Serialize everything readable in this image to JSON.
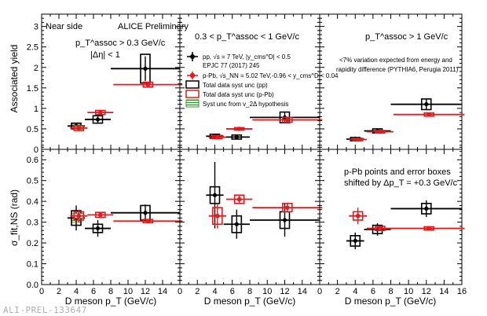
{
  "figure": {
    "watermark": "ALI-PREL-133647",
    "colors": {
      "pp": "#000000",
      "ppb": "#e41a1c",
      "v2": "#2ca02c"
    }
  },
  "chart_data": [
    {
      "type": "scatter",
      "panel": "top-left",
      "texts": [
        "Near side",
        "ALICE Preliminary",
        "p_T^assoc > 0.3 GeV/c",
        "|Δη| < 1"
      ],
      "ylabel": "Associated yield",
      "xlim": [
        0,
        16
      ],
      "ylim": [
        0,
        3.3
      ],
      "series": [
        {
          "name": "pp",
          "points": [
            {
              "x": 4,
              "y": 0.57,
              "xerr": 1.0,
              "ystat": 0.06,
              "ysys": 0.07
            },
            {
              "x": 6.5,
              "y": 0.73,
              "xerr": 1.5,
              "ystat": 0.1,
              "ysys": 0.09
            },
            {
              "x": 12,
              "y": 1.97,
              "xerr": 4.0,
              "ystat": 0.3,
              "ysys": 0.35
            }
          ]
        },
        {
          "name": "p-Pb",
          "points": [
            {
              "x": 4.3,
              "y": 0.52,
              "xerr": 1.0,
              "ystat": 0.04,
              "ysys": 0.06
            },
            {
              "x": 6.8,
              "y": 0.9,
              "xerr": 1.5,
              "ystat": 0.04,
              "ysys": 0.05
            },
            {
              "x": 12.3,
              "y": 1.58,
              "xerr": 4.0,
              "ystat": 0.05,
              "ysys": 0.06
            }
          ]
        }
      ]
    },
    {
      "type": "scatter",
      "panel": "top-middle",
      "texts": [
        "0.3 < p_T^assoc < 1 GeV/c"
      ],
      "legend": [
        "pp, √s = 7 TeV, |y_cms^D| < 0.5",
        "EPJC 77 (2017) 245",
        "p-Pb, √s_NN = 5.02 TeV,-0.96 < y_cms^D < 0.04",
        "Total data syst unc (pp)",
        "Total data syst unc (p-Pb)",
        "Syst unc from v_2Δ hypothesis"
      ],
      "xlim": [
        0,
        16
      ],
      "ylim": [
        0,
        3.3
      ],
      "series": [
        {
          "name": "pp",
          "points": [
            {
              "x": 4,
              "y": 0.32,
              "xerr": 1.0,
              "ystat": 0.05,
              "ysys": 0.05
            },
            {
              "x": 6.5,
              "y": 0.3,
              "xerr": 1.5,
              "ystat": 0.05,
              "ysys": 0.05
            },
            {
              "x": 12,
              "y": 0.78,
              "xerr": 4.0,
              "ystat": 0.13,
              "ysys": 0.13
            }
          ]
        },
        {
          "name": "p-Pb",
          "points": [
            {
              "x": 4.3,
              "y": 0.3,
              "xerr": 1.0,
              "ystat": 0.03,
              "ysys": 0.04
            },
            {
              "x": 6.8,
              "y": 0.5,
              "xerr": 1.5,
              "ystat": 0.03,
              "ysys": 0.03
            },
            {
              "x": 12.3,
              "y": 0.72,
              "xerr": 4.0,
              "ystat": 0.05,
              "ysys": 0.06
            }
          ]
        }
      ]
    },
    {
      "type": "scatter",
      "panel": "top-right",
      "texts": [
        "p_T^assoc > 1 GeV/c",
        "<7% variation expected from energy and",
        "rapidity difference (PYTHIA6, Perugia 2011)"
      ],
      "xlim": [
        0,
        16
      ],
      "ylim": [
        0,
        3.3
      ],
      "series": [
        {
          "name": "pp",
          "points": [
            {
              "x": 4,
              "y": 0.25,
              "xerr": 1.0,
              "ystat": 0.03,
              "ysys": 0.04
            },
            {
              "x": 6.5,
              "y": 0.45,
              "xerr": 1.5,
              "ystat": 0.04,
              "ysys": 0.05
            },
            {
              "x": 12,
              "y": 1.1,
              "xerr": 4.0,
              "ystat": 0.12,
              "ysys": 0.13
            }
          ]
        },
        {
          "name": "p-Pb",
          "points": [
            {
              "x": 4.3,
              "y": 0.24,
              "xerr": 1.0,
              "ystat": 0.03,
              "ysys": 0.03
            },
            {
              "x": 6.8,
              "y": 0.43,
              "xerr": 1.5,
              "ystat": 0.02,
              "ysys": 0.03
            },
            {
              "x": 12.3,
              "y": 0.85,
              "xerr": 4.0,
              "ystat": 0.04,
              "ysys": 0.04
            }
          ]
        }
      ]
    },
    {
      "type": "scatter",
      "panel": "bottom-left",
      "ylabel": "σ_fit,NS (rad)",
      "xlabel": "D meson p_T (GeV/c)",
      "xlim": [
        0,
        16
      ],
      "ylim": [
        0,
        0.65
      ],
      "series": [
        {
          "name": "pp",
          "points": [
            {
              "x": 4,
              "y": 0.32,
              "xerr": 1.0,
              "ystat": 0.06,
              "ysys": 0.035
            },
            {
              "x": 6.5,
              "y": 0.27,
              "xerr": 1.5,
              "ystat": 0.04,
              "ysys": 0.02
            },
            {
              "x": 12,
              "y": 0.345,
              "xerr": 4.0,
              "ystat": 0.04,
              "ysys": 0.035
            }
          ]
        },
        {
          "name": "p-Pb",
          "points": [
            {
              "x": 4.3,
              "y": 0.33,
              "xerr": 1.0,
              "ystat": 0.03,
              "ysys": 0.02
            },
            {
              "x": 6.8,
              "y": 0.335,
              "xerr": 1.5,
              "ystat": 0.01,
              "ysys": 0.012
            },
            {
              "x": 12.3,
              "y": 0.305,
              "xerr": 4.0,
              "ystat": 0.01,
              "ysys": 0.008
            }
          ]
        }
      ]
    },
    {
      "type": "scatter",
      "panel": "bottom-middle",
      "xlabel": "D meson p_T (GeV/c)",
      "xlim": [
        0,
        16
      ],
      "ylim": [
        0,
        0.65
      ],
      "series": [
        {
          "name": "pp",
          "points": [
            {
              "x": 4,
              "y": 0.43,
              "xerr": 1.0,
              "ystat": 0.16,
              "ysys": 0.04
            },
            {
              "x": 6.5,
              "y": 0.29,
              "xerr": 1.5,
              "ystat": 0.07,
              "ysys": 0.04
            },
            {
              "x": 12,
              "y": 0.31,
              "xerr": 4.0,
              "ystat": 0.08,
              "ysys": 0.04
            }
          ]
        },
        {
          "name": "p-Pb",
          "points": [
            {
              "x": 4.3,
              "y": 0.33,
              "xerr": 1.0,
              "ystat": 0.06,
              "ysys": 0.04
            },
            {
              "x": 6.8,
              "y": 0.41,
              "xerr": 1.5,
              "ystat": 0.02,
              "ysys": 0.02
            },
            {
              "x": 12.3,
              "y": 0.37,
              "xerr": 4.0,
              "ystat": 0.02,
              "ysys": 0.02
            }
          ]
        }
      ]
    },
    {
      "type": "scatter",
      "panel": "bottom-right",
      "texts": [
        "p-Pb points and error boxes",
        "shifted by Δp_T = +0.3 GeV/c"
      ],
      "xlabel": "D meson p_T (GeV/c)",
      "xlim": [
        0,
        16
      ],
      "ylim": [
        0,
        0.65
      ],
      "series": [
        {
          "name": "pp",
          "points": [
            {
              "x": 4,
              "y": 0.21,
              "xerr": 1.0,
              "ystat": 0.04,
              "ysys": 0.025
            },
            {
              "x": 6.5,
              "y": 0.265,
              "xerr": 1.5,
              "ystat": 0.03,
              "ysys": 0.02
            },
            {
              "x": 12,
              "y": 0.365,
              "xerr": 4.0,
              "ystat": 0.04,
              "ysys": 0.025
            }
          ]
        },
        {
          "name": "p-Pb",
          "points": [
            {
              "x": 4.3,
              "y": 0.33,
              "xerr": 1.0,
              "ystat": 0.04,
              "ysys": 0.02
            },
            {
              "x": 6.8,
              "y": 0.27,
              "xerr": 1.5,
              "ystat": 0.01,
              "ysys": 0.01
            },
            {
              "x": 12.3,
              "y": 0.27,
              "xerr": 4.0,
              "ystat": 0.01,
              "ysys": 0.008
            }
          ]
        }
      ]
    }
  ]
}
